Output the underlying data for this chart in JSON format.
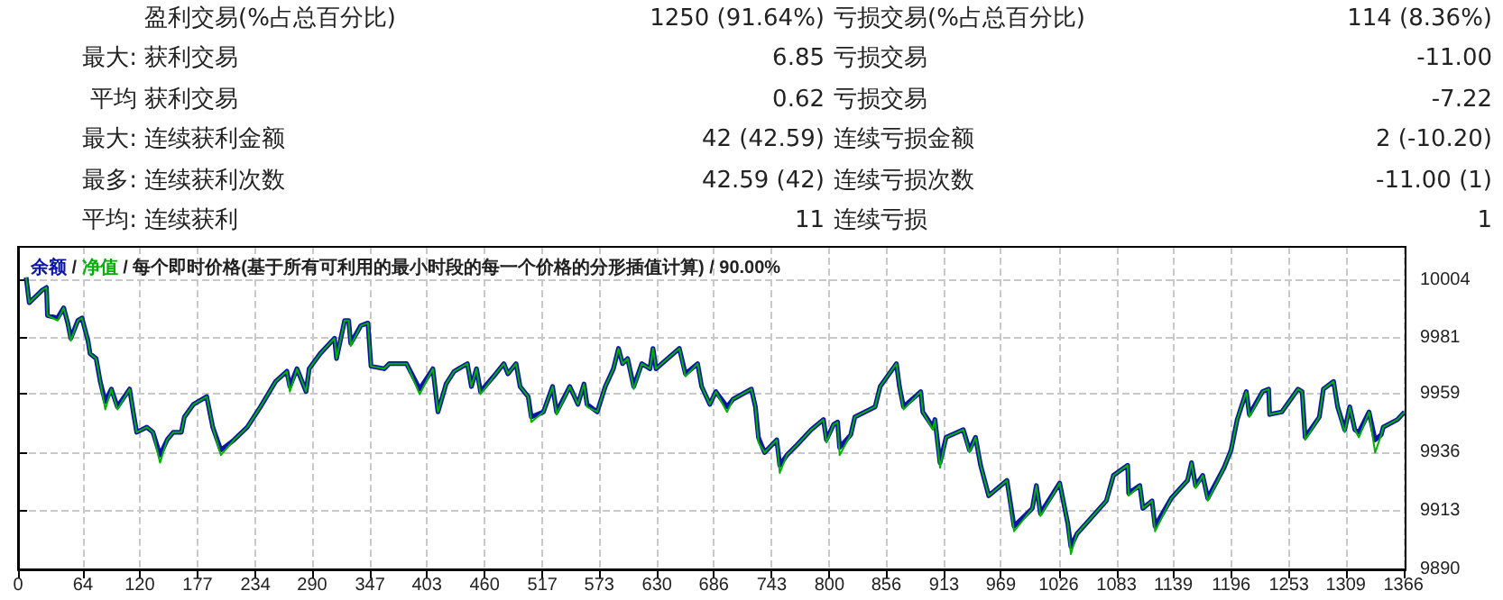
{
  "chart_data": {
    "type": "line",
    "title": "每个即时价格(基于所有可利用的最小时段的每一个价格的分形插值计算) / 90.00%",
    "legend_title": "/",
    "annotations": [
      "盈利交易(%占总百分比)",
      "1250 (91.64%)",
      "亏损交易(%占总百分比)",
      "114 (8.36%)",
      "最大:",
      "获利交易",
      "6.85",
      "亏损交易",
      "-11.00",
      "平均",
      "获利交易",
      "0.62",
      "亏损交易",
      "-7.22",
      "最大:",
      "连续获利金额",
      "42 (42.59)",
      "连续亏损金额",
      "2 (-10.20)",
      "最多:",
      "连续获利次数",
      "42.59 (42)",
      "连续亏损次数",
      "-11.00 (1)",
      "平均:",
      "连续获利",
      "11",
      "连续亏损",
      "1"
    ],
    "xlim": [
      0,
      1368
    ],
    "xticks": [
      0,
      64,
      120,
      177,
      234,
      290,
      347,
      403,
      460,
      517,
      573,
      630,
      686,
      743,
      800,
      856,
      913,
      969,
      1026,
      1083,
      1139,
      1196,
      1253,
      1309,
      1366
    ],
    "ylim": [
      9890,
      10017
    ],
    "yticks": [
      9890,
      9913,
      9936,
      9959,
      9981,
      10004
    ],
    "grid": true,
    "marker": "none",
    "line_style": "solid",
    "series": [
      {
        "name": "净值",
        "color": "#00b000",
        "x": [
          8,
          11,
          24,
          28,
          29,
          39,
          45,
          49,
          52,
          59,
          63,
          69,
          71,
          77,
          81,
          86,
          92,
          98,
          110,
          114,
          117,
          127,
          133,
          140,
          147,
          153,
          161,
          164,
          173,
          186,
          192,
          200,
          213,
          226,
          239,
          254,
          265,
          268,
          275,
          284,
          287,
          298,
          312,
          314,
          322,
          326,
          328,
          338,
          345,
          348,
          361,
          366,
          383,
          396,
          409,
          414,
          422,
          430,
          443,
          447,
          452,
          456,
          471,
          479,
          483,
          491,
          495,
          503,
          506,
          518,
          527,
          531,
          544,
          552,
          558,
          561,
          571,
          579,
          587,
          592,
          596,
          601,
          607,
          615,
          623,
          626,
          629,
          652,
          658,
          670,
          674,
          682,
          688,
          699,
          705,
          723,
          727,
          730,
          736,
          748,
          751,
          758,
          768,
          782,
          794,
          797,
          804,
          808,
          810,
          821,
          825,
          845,
          850,
          866,
          869,
          873,
          890,
          892,
          902,
          904,
          909,
          915,
          932,
          938,
          944,
          949,
          957,
          975,
          982,
          1000,
          1004,
          1008,
          1027,
          1035,
          1038,
          1044,
          1053,
          1073,
          1080,
          1094,
          1095,
          1106,
          1109,
          1118,
          1121,
          1137,
          1153,
          1157,
          1161,
          1168,
          1173,
          1189,
          1196,
          1202,
          1211,
          1214,
          1227,
          1233,
          1234,
          1246,
          1262,
          1266,
          1269,
          1283,
          1287,
          1297,
          1301,
          1308,
          1313,
          1318,
          1322,
          1332,
          1338,
          1344,
          1346,
          1360,
          1367
        ],
        "values": [
          10005,
          9995,
          10000,
          10001,
          9990,
          9988,
          9993,
          9987,
          9980,
          9988,
          9989,
          9980,
          9975,
          9973,
          9964,
          9953,
          9961,
          9953,
          9961,
          9951,
          9944,
          9946,
          9944,
          9932,
          9941,
          9944,
          9944,
          9950,
          9955,
          9958,
          9946,
          9935,
          9941,
          9946,
          9954,
          9964,
          9968,
          9960,
          9969,
          9960,
          9969,
          9975,
          9981,
          9973,
          9988,
          9988,
          9978,
          9986,
          9987,
          9970,
          9969,
          9971,
          9971,
          9959,
          9969,
          9952,
          9963,
          9968,
          9971,
          9962,
          9969,
          9959,
          9967,
          9971,
          9967,
          9971,
          9962,
          9958,
          9948,
          9952,
          9962,
          9951,
          9962,
          9955,
          9963,
          9954,
          9952,
          9962,
          9969,
          9977,
          9971,
          9973,
          9961,
          9971,
          9969,
          9977,
          9969,
          9977,
          9966,
          9971,
          9962,
          9955,
          9960,
          9952,
          9957,
          9961,
          9954,
          9940,
          9936,
          9941,
          9928,
          9935,
          9939,
          9945,
          9949,
          9940,
          9947,
          9948,
          9935,
          9943,
          9950,
          9954,
          9962,
          9971,
          9962,
          9953,
          9960,
          9952,
          9945,
          9949,
          9930,
          9942,
          9945,
          9936,
          9942,
          9931,
          9919,
          9925,
          9905,
          9914,
          9923,
          9911,
          9924,
          9908,
          9896,
          9904,
          9908,
          9917,
          9927,
          9931,
          9919,
          9923,
          9914,
          9917,
          9905,
          9918,
          9925,
          9932,
          9922,
          9927,
          9917,
          9930,
          9937,
          9949,
          9960,
          9950,
          9960,
          9961,
          9951,
          9952,
          9961,
          9960,
          9941,
          9950,
          9961,
          9964,
          9954,
          9944,
          9954,
          9945,
          9942,
          9952,
          9936,
          9943,
          9946,
          9949,
          9952
        ]
      },
      {
        "name": "余额",
        "color": "#0a14a8",
        "x": [
          8,
          11,
          24,
          28,
          29,
          39,
          45,
          49,
          52,
          59,
          63,
          69,
          71,
          77,
          81,
          86,
          92,
          98,
          110,
          114,
          117,
          127,
          133,
          140,
          147,
          153,
          161,
          164,
          173,
          186,
          192,
          200,
          213,
          226,
          239,
          254,
          265,
          268,
          275,
          284,
          287,
          298,
          312,
          314,
          322,
          326,
          328,
          338,
          345,
          348,
          361,
          366,
          383,
          396,
          409,
          414,
          422,
          430,
          443,
          447,
          452,
          456,
          471,
          479,
          483,
          491,
          495,
          503,
          506,
          518,
          527,
          531,
          544,
          552,
          558,
          561,
          571,
          579,
          587,
          592,
          596,
          601,
          607,
          615,
          623,
          626,
          629,
          652,
          658,
          670,
          674,
          682,
          688,
          699,
          705,
          723,
          727,
          730,
          736,
          748,
          751,
          758,
          768,
          782,
          794,
          797,
          804,
          808,
          810,
          821,
          825,
          845,
          850,
          866,
          869,
          873,
          890,
          892,
          902,
          904,
          909,
          915,
          932,
          938,
          944,
          949,
          957,
          975,
          982,
          1000,
          1004,
          1008,
          1027,
          1035,
          1038,
          1044,
          1053,
          1073,
          1080,
          1094,
          1095,
          1106,
          1109,
          1118,
          1121,
          1137,
          1153,
          1157,
          1161,
          1168,
          1173,
          1189,
          1196,
          1202,
          1211,
          1214,
          1227,
          1233,
          1234,
          1246,
          1262,
          1266,
          1269,
          1283,
          1287,
          1297,
          1301,
          1308,
          1313,
          1318,
          1322,
          1332,
          1338,
          1344,
          1346,
          1360,
          1367
        ],
        "values": [
          10005,
          9995,
          10000,
          10001,
          9990,
          9989,
          9993,
          9987,
          9981,
          9988,
          9989,
          9980,
          9975,
          9973,
          9964,
          9956,
          9961,
          9954,
          9961,
          9951,
          9944,
          9946,
          9944,
          9935,
          9941,
          9944,
          9944,
          9950,
          9955,
          9958,
          9946,
          9937,
          9941,
          9946,
          9954,
          9964,
          9968,
          9962,
          9969,
          9960,
          9969,
          9975,
          9981,
          9973,
          9988,
          9988,
          9979,
          9986,
          9987,
          9970,
          9969,
          9971,
          9971,
          9961,
          9969,
          9952,
          9963,
          9968,
          9971,
          9962,
          9969,
          9960,
          9967,
          9971,
          9967,
          9971,
          9962,
          9958,
          9950,
          9952,
          9962,
          9952,
          9962,
          9955,
          9963,
          9955,
          9952,
          9962,
          9969,
          9977,
          9971,
          9973,
          9962,
          9971,
          9969,
          9977,
          9969,
          9977,
          9967,
          9971,
          9962,
          9955,
          9960,
          9954,
          9957,
          9961,
          9954,
          9942,
          9936,
          9941,
          9931,
          9935,
          9939,
          9945,
          9949,
          9941,
          9947,
          9948,
          9938,
          9943,
          9950,
          9954,
          9962,
          9971,
          9962,
          9954,
          9960,
          9952,
          9946,
          9949,
          9932,
          9942,
          9945,
          9937,
          9942,
          9931,
          9919,
          9925,
          9907,
          9914,
          9923,
          9912,
          9924,
          9908,
          9899,
          9904,
          9908,
          9917,
          9927,
          9931,
          9920,
          9923,
          9914,
          9917,
          9907,
          9918,
          9925,
          9932,
          9923,
          9927,
          9918,
          9930,
          9937,
          9949,
          9960,
          9951,
          9960,
          9961,
          9951,
          9952,
          9961,
          9960,
          9942,
          9950,
          9961,
          9964,
          9954,
          9945,
          9954,
          9945,
          9944,
          9952,
          9941,
          9943,
          9946,
          9949,
          9952
        ]
      }
    ]
  }
}
